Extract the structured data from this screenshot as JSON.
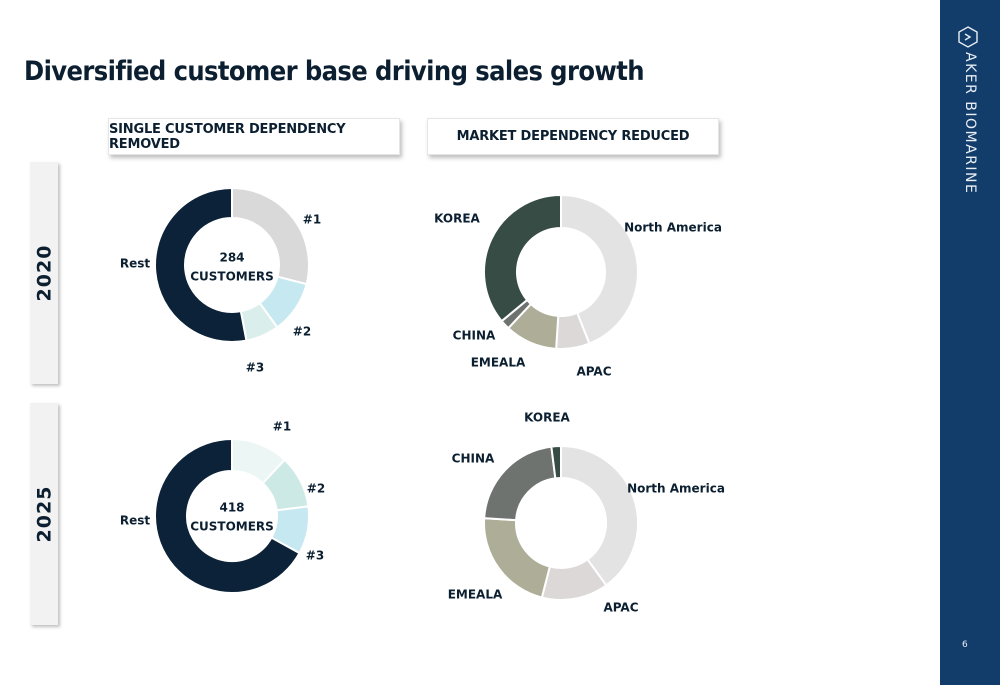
{
  "page": {
    "title": "Diversified customer base driving sales growth",
    "page_number": "6"
  },
  "brand": {
    "name": "AKER BIOMARINE",
    "icon": "aker-logo-icon"
  },
  "headers": {
    "left": "SINGLE CUSTOMER DEPENDENCY REMOVED",
    "right": "MARKET DEPENDENCY REDUCED"
  },
  "years": [
    "2020",
    "2025"
  ],
  "colors": {
    "sidebar": "#123d6a",
    "text": "#0b1f30"
  },
  "chart_data": [
    {
      "type": "pie",
      "id": "customers-2020",
      "center_label": [
        "284",
        "CUSTOMERS"
      ],
      "series": [
        {
          "label": "#1",
          "value": 29,
          "color": "#d9d9d9"
        },
        {
          "label": "#2",
          "value": 11,
          "color": "#c6e8f1"
        },
        {
          "label": "#3",
          "value": 7,
          "color": "#daefeb"
        },
        {
          "label": "Rest",
          "value": 53,
          "color": "#0b2238"
        }
      ]
    },
    {
      "type": "pie",
      "id": "markets-2020",
      "series": [
        {
          "label": "North America",
          "value": 44,
          "color": "#e3e3e3"
        },
        {
          "label": "APAC",
          "value": 7,
          "color": "#dcd8d8"
        },
        {
          "label": "EMEALA",
          "value": 11,
          "color": "#aeae98"
        },
        {
          "label": "CHINA",
          "value": 2,
          "color": "#6e7370"
        },
        {
          "label": "KOREA",
          "value": 36,
          "color": "#364c45"
        }
      ]
    },
    {
      "type": "pie",
      "id": "customers-2025",
      "center_label": [
        "418",
        "CUSTOMERS"
      ],
      "series": [
        {
          "label": "#1",
          "value": 12,
          "color": "#ebf6f5"
        },
        {
          "label": "#2",
          "value": 11,
          "color": "#cde9e6"
        },
        {
          "label": "#3",
          "value": 10,
          "color": "#c6e8f1"
        },
        {
          "label": "Rest",
          "value": 67,
          "color": "#0b2238"
        }
      ]
    },
    {
      "type": "pie",
      "id": "markets-2025",
      "series": [
        {
          "label": "North America",
          "value": 40,
          "color": "#e3e3e3"
        },
        {
          "label": "APAC",
          "value": 14,
          "color": "#dcd8d8"
        },
        {
          "label": "EMEALA",
          "value": 22,
          "color": "#aeae98"
        },
        {
          "label": "CHINA",
          "value": 22,
          "color": "#6e7370"
        },
        {
          "label": "KOREA",
          "value": 2,
          "color": "#364c45"
        }
      ]
    }
  ]
}
